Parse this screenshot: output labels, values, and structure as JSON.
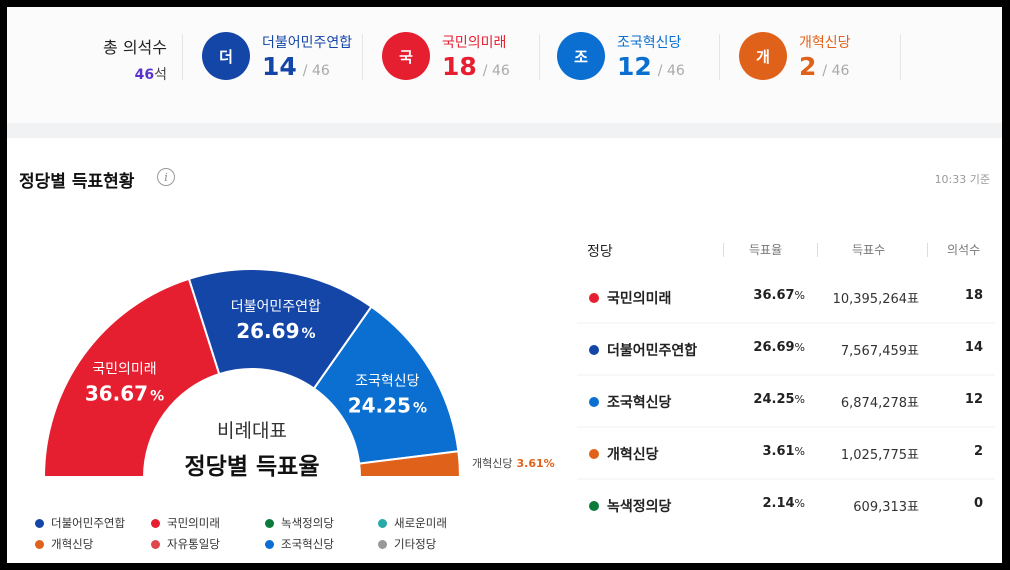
{
  "seats": {
    "total_label": "총 의석수",
    "total_value": "46",
    "total_unit": "석",
    "parties": [
      {
        "initial": "더",
        "name": "더불어민주연합",
        "seats": "14",
        "total": "/ 46",
        "color": "#1446a8"
      },
      {
        "initial": "국",
        "name": "국민의미래",
        "seats": "18",
        "total": "/ 46",
        "color": "#e51f30"
      },
      {
        "initial": "조",
        "name": "조국혁신당",
        "seats": "12",
        "total": "/ 46",
        "color": "#0a6fd1"
      },
      {
        "initial": "개",
        "name": "개혁신당",
        "seats": "2",
        "total": "/ 46",
        "color": "#e0621a"
      }
    ]
  },
  "section": {
    "title": "정당별 득표현황",
    "info_icon": "info-icon",
    "timestamp": "10:33 기준"
  },
  "chart_data": {
    "type": "pie",
    "subtype": "semicircle-donut",
    "title": "비례대표",
    "subtitle": "정당별 득표율",
    "slices": [
      {
        "name": "국민의미래",
        "value": 36.67,
        "label": "36.67",
        "unit": "%",
        "color": "#e51f30"
      },
      {
        "name": "더불어민주연합",
        "value": 26.69,
        "label": "26.69",
        "unit": "%",
        "color": "#1446a8"
      },
      {
        "name": "조국혁신당",
        "value": 24.25,
        "label": "24.25",
        "unit": "%",
        "color": "#0a6fd1"
      },
      {
        "name": "개혁신당",
        "value": 3.61,
        "label": "3.61%",
        "unit": "%",
        "color": "#e0621a"
      }
    ],
    "legend": [
      {
        "name": "더불어민주연합",
        "color": "#1446a8"
      },
      {
        "name": "국민의미래",
        "color": "#e51f30"
      },
      {
        "name": "녹색정의당",
        "color": "#0c7a3b"
      },
      {
        "name": "새로운미래",
        "color": "#2aa9a9"
      },
      {
        "name": "개혁신당",
        "color": "#e0621a"
      },
      {
        "name": "자유통일당",
        "color": "#e0474c"
      },
      {
        "name": "조국혁신당",
        "color": "#0a6fd1"
      },
      {
        "name": "기타정당",
        "color": "#999999"
      }
    ]
  },
  "table": {
    "headers": {
      "party": "정당",
      "rate": "득표율",
      "votes": "득표수",
      "seats": "의석수"
    },
    "rows": [
      {
        "party": "국민의미래",
        "color": "#e51f30",
        "rate": "36.67",
        "rate_unit": "%",
        "votes": "10,395,264표",
        "seats": "18"
      },
      {
        "party": "더불어민주연합",
        "color": "#1446a8",
        "rate": "26.69",
        "rate_unit": "%",
        "votes": "7,567,459표",
        "seats": "14"
      },
      {
        "party": "조국혁신당",
        "color": "#0a6fd1",
        "rate": "24.25",
        "rate_unit": "%",
        "votes": "6,874,278표",
        "seats": "12"
      },
      {
        "party": "개혁신당",
        "color": "#e0621a",
        "rate": "3.61",
        "rate_unit": "%",
        "votes": "1,025,775표",
        "seats": "2"
      },
      {
        "party": "녹색정의당",
        "color": "#0c7a3b",
        "rate": "2.14",
        "rate_unit": "%",
        "votes": "609,313표",
        "seats": "0"
      }
    ]
  }
}
